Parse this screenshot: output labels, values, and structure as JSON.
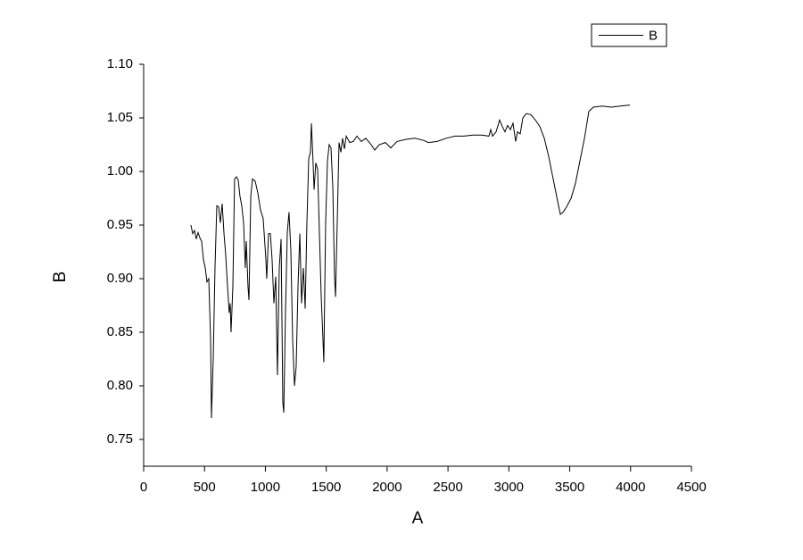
{
  "chart_data": {
    "type": "line",
    "x_label": "A",
    "y_label": "B",
    "xlim": [
      0,
      4500
    ],
    "ylim": [
      0.725,
      1.1
    ],
    "xticks": [
      0,
      500,
      1000,
      1500,
      2000,
      2500,
      3000,
      3500,
      4000,
      4500
    ],
    "yticks": [
      0.75,
      {
        "value": 0.8,
        "label": "0.80"
      },
      0.85,
      {
        "value": 0.9,
        "label": "0.90"
      },
      0.95,
      {
        "value": 1.0,
        "label": "1.00"
      },
      1.05,
      {
        "value": 1.1,
        "label": "1.10"
      }
    ],
    "legend": "upper right",
    "x": [
      388,
      403,
      418,
      432,
      447,
      462,
      476,
      491,
      506,
      520,
      535,
      550,
      557,
      572,
      586,
      601,
      616,
      630,
      645,
      660,
      674,
      689,
      703,
      711,
      718,
      733,
      747,
      762,
      777,
      791,
      806,
      821,
      835,
      843,
      857,
      865,
      880,
      894,
      916,
      938,
      960,
      982,
      1004,
      1011,
      1026,
      1041,
      1055,
      1070,
      1085,
      1099,
      1114,
      1129,
      1143,
      1151,
      1165,
      1180,
      1194,
      1209,
      1224,
      1239,
      1253,
      1268,
      1283,
      1297,
      1312,
      1327,
      1341,
      1356,
      1370,
      1378,
      1392,
      1400,
      1414,
      1429,
      1444,
      1458,
      1473,
      1480,
      1495,
      1510,
      1524,
      1539,
      1554,
      1568,
      1576,
      1590,
      1605,
      1620,
      1634,
      1649,
      1664,
      1693,
      1722,
      1752,
      1788,
      1825,
      1869,
      1898,
      1935,
      1986,
      2030,
      2081,
      2155,
      2228,
      2301,
      2338,
      2411,
      2485,
      2558,
      2631,
      2704,
      2778,
      2836,
      2851,
      2866,
      2895,
      2924,
      2946,
      2968,
      2990,
      3012,
      3034,
      3056,
      3071,
      3093,
      3115,
      3144,
      3181,
      3218,
      3254,
      3291,
      3327,
      3364,
      3401,
      3423,
      3445,
      3474,
      3511,
      3547,
      3584,
      3621,
      3657,
      3694,
      3767,
      3840,
      3914,
      3994
    ],
    "series": [
      {
        "name": "B",
        "color": "#000000",
        "values": [
          0.95,
          0.942,
          0.945,
          0.937,
          0.943,
          0.938,
          0.935,
          0.918,
          0.91,
          0.897,
          0.9,
          0.843,
          0.77,
          0.827,
          0.91,
          0.968,
          0.967,
          0.952,
          0.97,
          0.942,
          0.922,
          0.893,
          0.868,
          0.877,
          0.85,
          0.893,
          0.993,
          0.995,
          0.992,
          0.977,
          0.968,
          0.952,
          0.91,
          0.935,
          0.893,
          0.88,
          0.977,
          0.993,
          0.991,
          0.98,
          0.964,
          0.956,
          0.918,
          0.9,
          0.942,
          0.942,
          0.918,
          0.877,
          0.902,
          0.81,
          0.91,
          0.937,
          0.785,
          0.775,
          0.868,
          0.943,
          0.962,
          0.927,
          0.843,
          0.8,
          0.818,
          0.893,
          0.942,
          0.877,
          0.91,
          0.872,
          0.952,
          1.012,
          1.018,
          1.045,
          1.008,
          0.983,
          1.008,
          1.002,
          0.942,
          0.885,
          0.843,
          0.822,
          0.952,
          1.01,
          1.025,
          1.022,
          0.985,
          0.902,
          0.883,
          0.952,
          1.027,
          1.018,
          1.031,
          1.021,
          1.033,
          1.027,
          1.028,
          1.033,
          1.028,
          1.031,
          1.025,
          1.02,
          1.025,
          1.027,
          1.022,
          1.028,
          1.03,
          1.031,
          1.029,
          1.027,
          1.028,
          1.031,
          1.033,
          1.033,
          1.034,
          1.034,
          1.033,
          1.039,
          1.033,
          1.037,
          1.048,
          1.042,
          1.037,
          1.043,
          1.039,
          1.045,
          1.028,
          1.037,
          1.035,
          1.05,
          1.054,
          1.053,
          1.048,
          1.042,
          1.031,
          1.014,
          0.993,
          0.972,
          0.96,
          0.962,
          0.967,
          0.975,
          0.989,
          1.01,
          1.031,
          1.056,
          1.06,
          1.061,
          1.06,
          1.061,
          1.062
        ]
      }
    ]
  }
}
